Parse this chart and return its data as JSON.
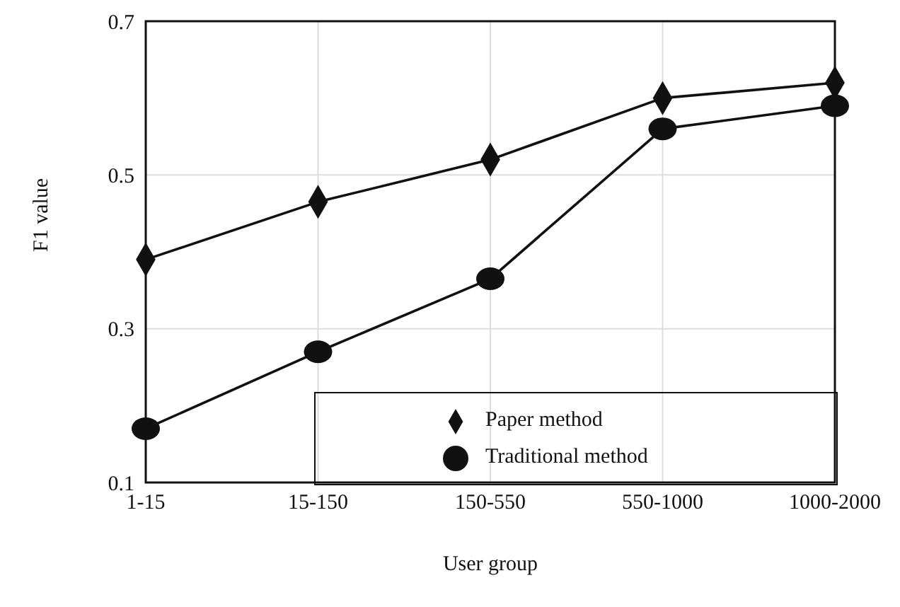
{
  "chart_data": {
    "type": "line",
    "xlabel": "User group",
    "ylabel": "F1 value",
    "categories": [
      "1-15",
      "15-150",
      "150-550",
      "550-1000",
      "1000-2000"
    ],
    "series": [
      {
        "name": "Paper method",
        "color": "#111111",
        "marker": "diamond",
        "values": [
          0.39,
          0.465,
          0.52,
          0.6,
          0.62
        ]
      },
      {
        "name": "Traditional method",
        "color": "#111111",
        "marker": "circle",
        "values": [
          0.17,
          0.27,
          0.365,
          0.56,
          0.59
        ]
      }
    ],
    "ylim": [
      0.1,
      0.7
    ],
    "yticks": [
      0.1,
      0.3,
      0.5,
      0.7
    ],
    "grid": true,
    "legend": "bottom right",
    "line_style": "solid"
  }
}
